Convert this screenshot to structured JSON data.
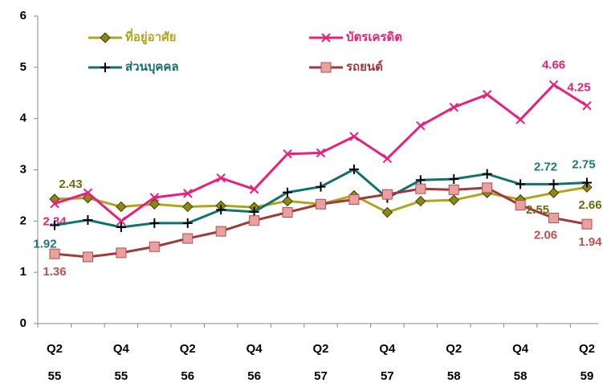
{
  "chart_data": {
    "type": "line",
    "categories": [
      [
        "Q2",
        "55"
      ],
      null,
      [
        "Q4",
        "55"
      ],
      null,
      [
        "Q2",
        "56"
      ],
      null,
      [
        "Q4",
        "56"
      ],
      null,
      [
        "Q2",
        "57"
      ],
      null,
      [
        "Q4",
        "57"
      ],
      null,
      [
        "Q2",
        "58"
      ],
      null,
      [
        "Q4",
        "58"
      ],
      null,
      [
        "Q2",
        "59"
      ]
    ],
    "ylim": [
      0,
      6
    ],
    "yticks": [
      0,
      1,
      2,
      3,
      4,
      5,
      6
    ],
    "grid": false,
    "series": [
      {
        "name": "ที่อยู่อาศัย",
        "color": "#b0a520",
        "marker": "diamond",
        "values": [
          2.43,
          2.45,
          2.28,
          2.33,
          2.28,
          2.3,
          2.27,
          2.39,
          2.33,
          2.5,
          2.17,
          2.39,
          2.41,
          2.55,
          2.42,
          2.55,
          2.66
        ],
        "value_labels": [
          "2.43",
          null,
          null,
          null,
          null,
          null,
          null,
          null,
          null,
          null,
          null,
          null,
          null,
          null,
          null,
          "2.55",
          "2.66"
        ]
      },
      {
        "name": "บัตรเครดิต",
        "color": "#e8207a",
        "marker": "x",
        "values": [
          2.34,
          2.55,
          2.0,
          2.46,
          2.54,
          2.84,
          2.62,
          3.31,
          3.33,
          3.65,
          3.22,
          3.86,
          4.22,
          4.47,
          3.98,
          4.66,
          4.25
        ],
        "value_labels": [
          "2.34",
          null,
          null,
          null,
          null,
          null,
          null,
          null,
          null,
          null,
          null,
          null,
          null,
          null,
          null,
          "4.66",
          "4.25"
        ]
      },
      {
        "name": "ส่วนบุคคล",
        "color": "#12716e",
        "marker": "plus",
        "values": [
          1.92,
          2.02,
          1.88,
          1.96,
          1.96,
          2.22,
          2.18,
          2.56,
          2.67,
          3.01,
          2.45,
          2.8,
          2.82,
          2.92,
          2.72,
          2.72,
          2.75
        ],
        "value_labels": [
          "1.92",
          null,
          null,
          null,
          null,
          null,
          null,
          null,
          null,
          null,
          null,
          null,
          null,
          null,
          null,
          "2.72",
          "2.75"
        ]
      },
      {
        "name": "รถยนต์",
        "color": "#9e3a3a",
        "marker": "square",
        "values": [
          1.36,
          1.3,
          1.38,
          1.5,
          1.66,
          1.8,
          2.01,
          2.17,
          2.33,
          2.42,
          2.52,
          2.63,
          2.61,
          2.65,
          2.31,
          2.06,
          1.94
        ],
        "value_labels": [
          "1.36",
          null,
          null,
          null,
          null,
          null,
          null,
          null,
          null,
          null,
          null,
          null,
          null,
          null,
          null,
          "2.06",
          "1.94"
        ]
      }
    ]
  }
}
